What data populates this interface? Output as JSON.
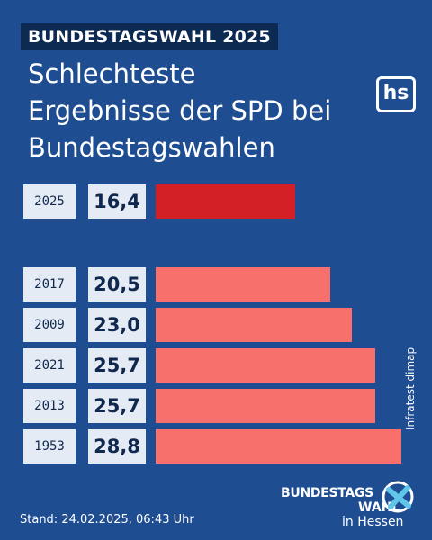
{
  "kicker": "BUNDESTAGSWAHL 2025",
  "title_lines": [
    "Schlechteste",
    "Ergebnisse der SPD bei",
    "Bundestagswahlen"
  ],
  "logo": {
    "text": "hs",
    "icon": "hs-logo-icon"
  },
  "source": "Infratest dimap",
  "footer": {
    "stand": "Stand: 24.02.2025, 06:43 Uhr"
  },
  "brand_logo": {
    "line1": "BUNDESTAGS",
    "line2": "WAHL",
    "line3": "in Hessen",
    "icon": "ballot-cross-icon"
  },
  "colors": {
    "background": "#1e4d92",
    "highlight": "#d32027",
    "bar": "#f7706c",
    "label_box": "#e4ebf5",
    "kicker_bg": "#0d2a52"
  },
  "chart_data": {
    "type": "bar",
    "orientation": "horizontal",
    "categories": [
      "2025",
      "2017",
      "2009",
      "2021",
      "2013",
      "1953"
    ],
    "values": [
      16.4,
      20.5,
      23.0,
      25.7,
      25.7,
      28.8
    ],
    "value_labels": [
      "16,4",
      "20,5",
      "23,0",
      "25,7",
      "25,7",
      "28,8"
    ],
    "highlight": [
      "2025"
    ],
    "unit": "%",
    "grid": false
  }
}
